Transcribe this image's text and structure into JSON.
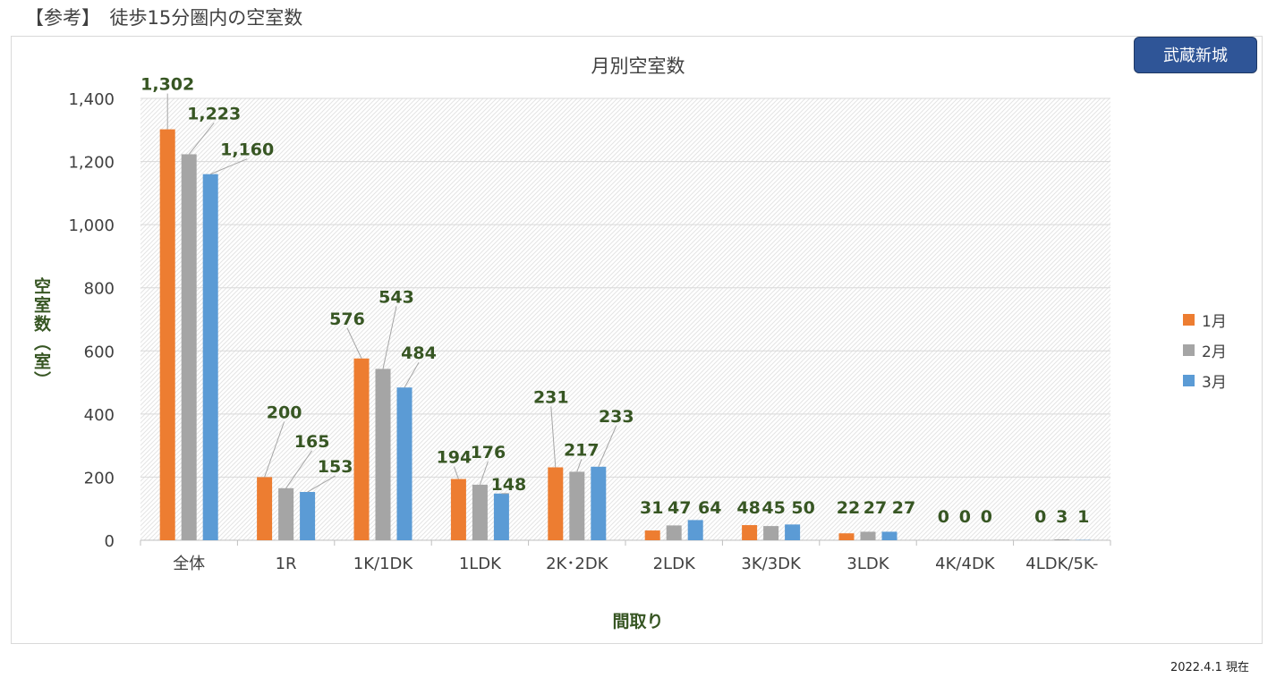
{
  "page": {
    "heading": "【参考】　徒歩15分圏内の空室数",
    "location": "武蔵新城",
    "as_of": "2022.4.1 現在"
  },
  "chart_data": {
    "type": "bar",
    "title": "月別空室数",
    "xlabel": "間取り",
    "ylabel": "空室数（室）",
    "ylim": [
      0,
      1400
    ],
    "yticks": [
      0,
      200,
      400,
      600,
      800,
      1000,
      1200,
      1400
    ],
    "ytick_labels": [
      "0",
      "200",
      "400",
      "600",
      "800",
      "1,000",
      "1,200",
      "1,400"
    ],
    "grid": true,
    "legend_position": "right",
    "categories": [
      "全体",
      "1R",
      "1K/1DK",
      "1LDK",
      "2K･2DK",
      "2LDK",
      "3K/3DK",
      "3LDK",
      "4K/4DK",
      "4LDK/5K-"
    ],
    "series": [
      {
        "name": "1月",
        "color": "#ed7d31",
        "values": [
          1302,
          200,
          576,
          194,
          231,
          31,
          48,
          22,
          0,
          0
        ],
        "labels": [
          "1,302",
          "200",
          "576",
          "194",
          "231",
          "31",
          "48",
          "22",
          "0",
          "0"
        ]
      },
      {
        "name": "2月",
        "color": "#a5a5a5",
        "values": [
          1223,
          165,
          543,
          176,
          217,
          47,
          45,
          27,
          0,
          3
        ],
        "labels": [
          "1,223",
          "165",
          "543",
          "176",
          "217",
          "47",
          "45",
          "27",
          "0",
          "3"
        ]
      },
      {
        "name": "3月",
        "color": "#5b9bd5",
        "values": [
          1160,
          153,
          484,
          148,
          233,
          64,
          50,
          27,
          0,
          1
        ],
        "labels": [
          "1,160",
          "153",
          "484",
          "148",
          "233",
          "64",
          "50",
          "27",
          "0",
          "1"
        ]
      }
    ]
  }
}
